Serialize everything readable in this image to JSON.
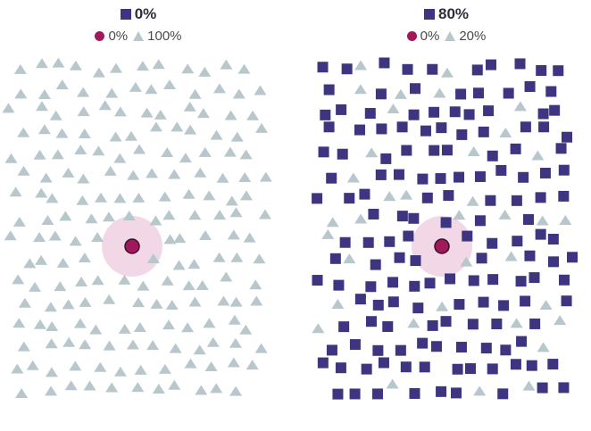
{
  "colors": {
    "square": "#3d3580",
    "triangle": "#b8c7cc",
    "focus_dot": "#a0195a",
    "focus_halo": "#f2d7e6"
  },
  "panels": [
    {
      "title": "0%",
      "legend": [
        {
          "icon": "dot",
          "label": "0%"
        },
        {
          "icon": "triangle",
          "label": "100%"
        }
      ],
      "unlike_share": 0.0
    },
    {
      "title": "80%",
      "legend": [
        {
          "icon": "dot",
          "label": "0%"
        },
        {
          "icon": "triangle",
          "label": "20%"
        }
      ],
      "unlike_share": 0.8
    }
  ]
}
